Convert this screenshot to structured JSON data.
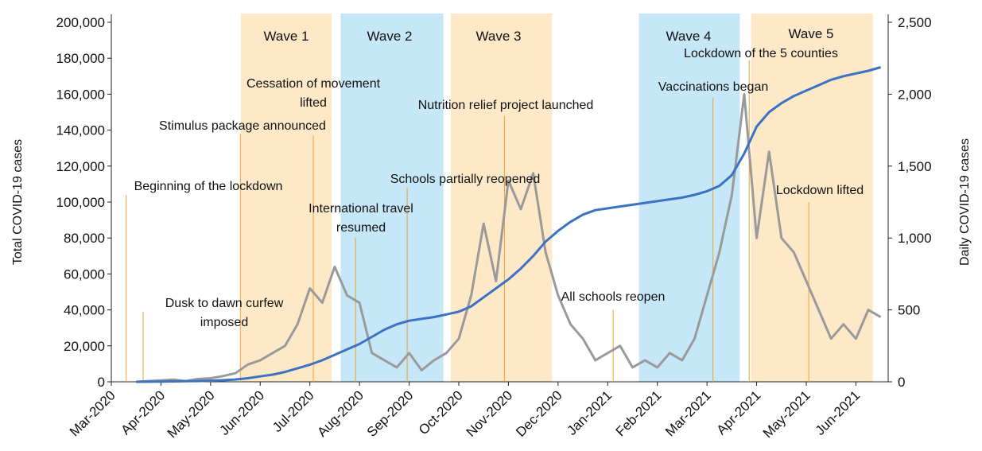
{
  "chart_data": {
    "type": "line",
    "xlabel": null,
    "ylabel": "Total COVID-19 cases",
    "y2label": "Daily COVID-19 cases",
    "xlim": [
      0,
      15.65
    ],
    "xticks": [
      {
        "value": 0,
        "label": "Mar-2020"
      },
      {
        "value": 1,
        "label": "Apr-2020"
      },
      {
        "value": 2,
        "label": "May-2020"
      },
      {
        "value": 3,
        "label": "Jun-2020"
      },
      {
        "value": 4,
        "label": "Jul-2020"
      },
      {
        "value": 5,
        "label": "Aug-2020"
      },
      {
        "value": 6,
        "label": "Sep-2020"
      },
      {
        "value": 7,
        "label": "Oct-2020"
      },
      {
        "value": 8,
        "label": "Nov-2020"
      },
      {
        "value": 9,
        "label": "Dec-2020"
      },
      {
        "value": 10,
        "label": "Jan-2021"
      },
      {
        "value": 11,
        "label": "Feb-2021"
      },
      {
        "value": 12,
        "label": "Mar-2021"
      },
      {
        "value": 13,
        "label": "Apr-2021"
      },
      {
        "value": 14,
        "label": "May-2021"
      },
      {
        "value": 15,
        "label": "Jun-2021"
      }
    ],
    "ylim": [
      0,
      200000
    ],
    "yticks": [
      0,
      {
        "value": 20000,
        "label": "20,000"
      },
      {
        "value": 40000,
        "label": "40,000"
      },
      {
        "value": 60000,
        "label": "60,000"
      },
      {
        "value": 80000,
        "label": "80,000"
      },
      {
        "value": 100000,
        "label": "100,000"
      },
      {
        "value": 120000,
        "label": "120,000"
      },
      {
        "value": 140000,
        "label": "140,000"
      },
      {
        "value": 160000,
        "label": "160,000"
      },
      {
        "value": 180000,
        "label": "180,000"
      },
      {
        "value": 200000,
        "label": "200,000"
      }
    ],
    "y2lim": [
      0,
      2500
    ],
    "y2ticks": [
      0,
      500,
      {
        "value": 1000,
        "label": "1,000"
      },
      {
        "value": 1500,
        "label": "1,500"
      },
      {
        "value": 2000,
        "label": "2,000"
      },
      {
        "value": 2500,
        "label": "2,500"
      }
    ],
    "waves": [
      {
        "label": "Wave 1",
        "x0": 2.61,
        "x1": 4.44,
        "color": "#fde9c8"
      },
      {
        "label": "Wave 2",
        "x0": 4.62,
        "x1": 6.69,
        "color": "#c6e7f8"
      },
      {
        "label": "Wave 3",
        "x0": 6.84,
        "x1": 8.88,
        "color": "#fde9c8"
      },
      {
        "label": "Wave 4",
        "x0": 10.63,
        "x1": 12.66,
        "color": "#c6e7f8"
      },
      {
        "label": "Wave 5",
        "x0": 12.89,
        "x1": 15.34,
        "color": "#fde9c8"
      }
    ],
    "annotations": [
      {
        "text": [
          "Beginning of the lockdown"
        ],
        "x": 0.3,
        "y": 104000
      },
      {
        "text": [
          "Dusk to dawn curfew",
          "imposed"
        ],
        "x": 0.64,
        "y": 39000
      },
      {
        "text": [
          "Stimulus package announced"
        ],
        "x": 2.6,
        "y": 138000
      },
      {
        "text": [
          "Cessation of movement",
          "lifted"
        ],
        "x": 4.07,
        "y": 137000
      },
      {
        "text": [
          "International travel",
          "resumed"
        ],
        "x": 4.92,
        "y": 80000
      },
      {
        "text": [
          "Schools partially reopened"
        ],
        "x": 5.96,
        "y": 108000
      },
      {
        "text": [
          "Nutrition relief project launched"
        ],
        "x": 7.92,
        "y": 148000
      },
      {
        "text": [
          "All schools reopen"
        ],
        "x": 10.11,
        "y": 40000
      },
      {
        "text": [
          "Vaccinations began"
        ],
        "x": 12.12,
        "y": 158000
      },
      {
        "text": [
          "Lockdown of the 5 counties"
        ],
        "x": 12.85,
        "y": 179000
      },
      {
        "text": [
          "Lockdown lifted"
        ],
        "x": 14.05,
        "y": 100000
      }
    ],
    "x": [
      0.5,
      0.75,
      1,
      1.25,
      1.5,
      1.75,
      2,
      2.25,
      2.5,
      2.75,
      3,
      3.25,
      3.5,
      3.75,
      4,
      4.25,
      4.5,
      4.75,
      5,
      5.25,
      5.5,
      5.75,
      6,
      6.25,
      6.5,
      6.75,
      7,
      7.25,
      7.5,
      7.75,
      8,
      8.25,
      8.5,
      8.75,
      9,
      9.25,
      9.5,
      9.75,
      10,
      10.25,
      10.5,
      10.75,
      11,
      11.25,
      11.5,
      11.75,
      12,
      12.25,
      12.5,
      12.75,
      13,
      13.25,
      13.5,
      13.75,
      14,
      14.25,
      14.5,
      14.75,
      15,
      15.25,
      15.5
    ],
    "series": [
      {
        "name": "Daily COVID-19 cases",
        "axis": "y2",
        "color": "#9a9a9a",
        "values": [
          0,
          5,
          10,
          15,
          5,
          20,
          25,
          40,
          60,
          120,
          150,
          200,
          250,
          400,
          650,
          550,
          800,
          600,
          550,
          200,
          150,
          100,
          200,
          80,
          150,
          200,
          300,
          600,
          1100,
          700,
          1400,
          1200,
          1450,
          900,
          600,
          400,
          300,
          150,
          200,
          250,
          100,
          150,
          100,
          200,
          150,
          300,
          600,
          900,
          1300,
          2000,
          1000,
          1600,
          1000,
          900,
          700,
          500,
          300,
          400,
          300,
          500,
          450
        ]
      },
      {
        "name": "Total COVID-19 cases",
        "axis": "y",
        "color": "#3b72c2",
        "values": [
          0,
          50,
          100,
          200,
          300,
          400,
          600,
          900,
          1300,
          2000,
          3000,
          4000,
          5500,
          7500,
          9500,
          12000,
          15000,
          18000,
          21000,
          25000,
          29000,
          32000,
          34000,
          35000,
          36000,
          37500,
          39000,
          42000,
          47000,
          52000,
          57000,
          63000,
          70000,
          78000,
          84000,
          89000,
          93000,
          95500,
          96500,
          97500,
          98500,
          99500,
          100500,
          101500,
          102500,
          104000,
          106000,
          109000,
          115000,
          127000,
          142000,
          150000,
          155000,
          159000,
          162000,
          165000,
          168000,
          170000,
          171500,
          173000,
          175000
        ]
      }
    ]
  }
}
